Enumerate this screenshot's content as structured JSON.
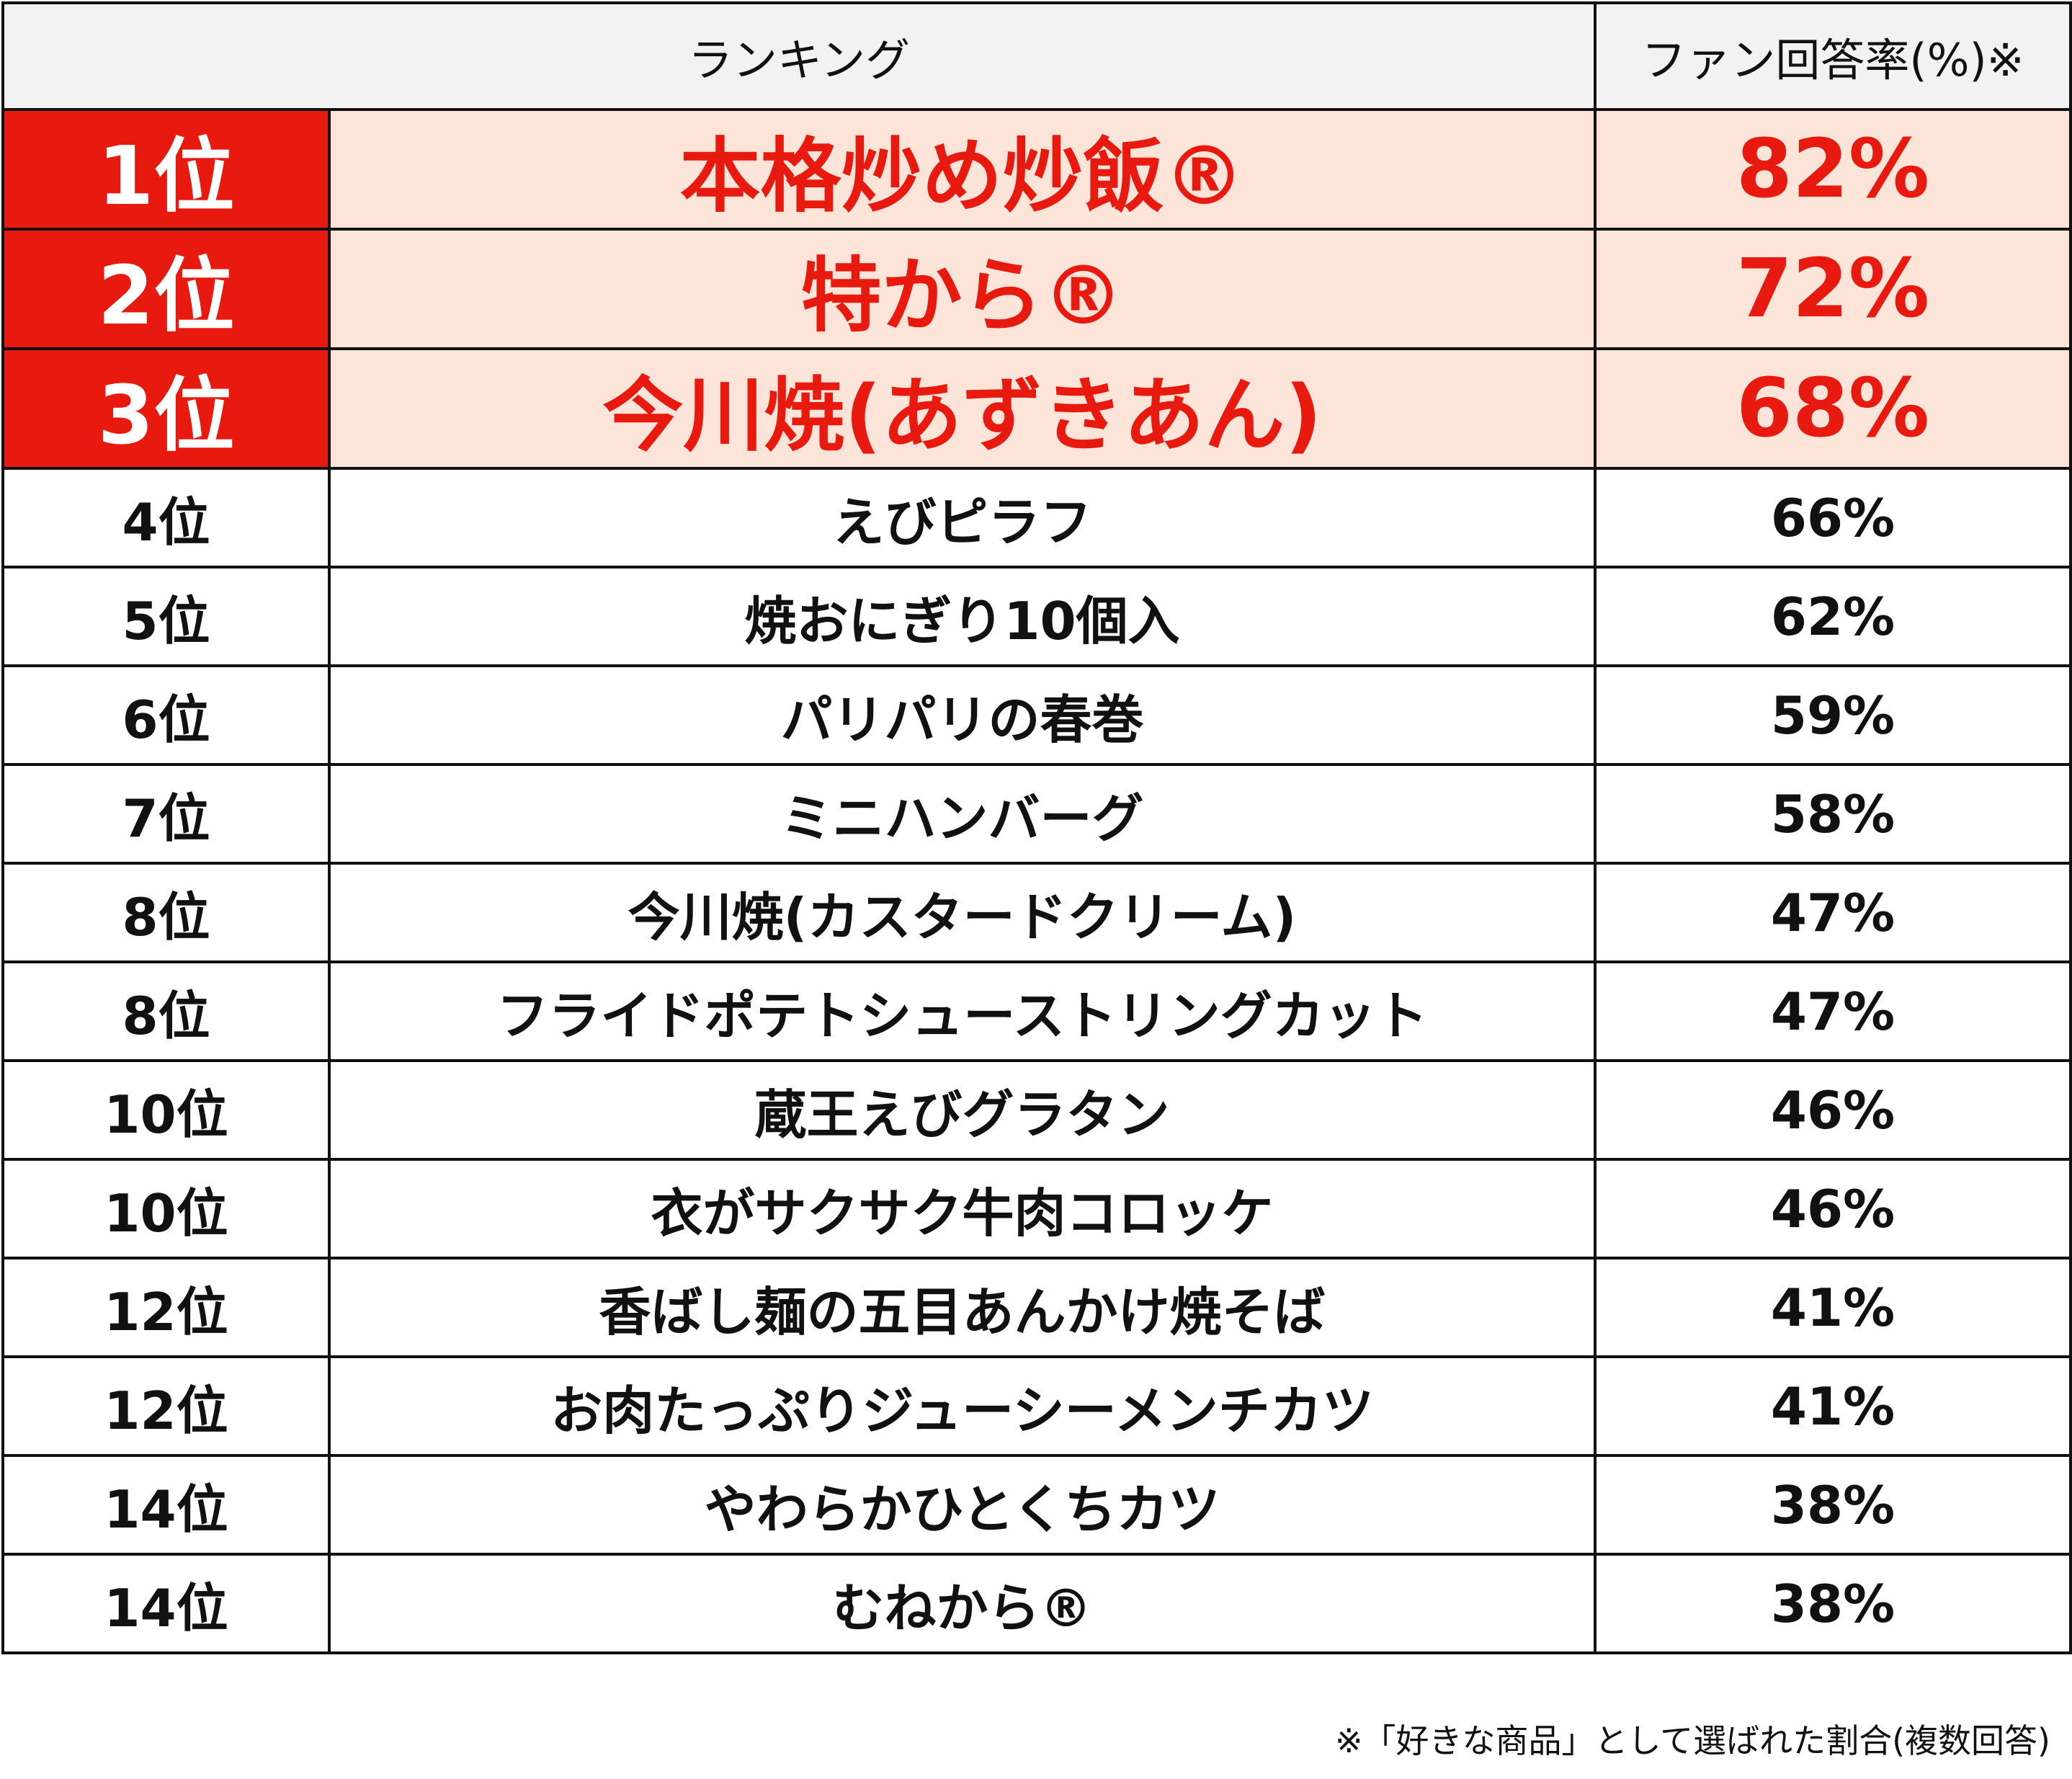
{
  "header": {
    "ranking": "ランキング",
    "rate": "ファン回答率(%)※"
  },
  "colors": {
    "accent": "#e8190f",
    "highlight_bg": "#fde4d8",
    "header_bg": "#f2f2f2"
  },
  "rows": [
    {
      "rank": "1位",
      "name": "本格炒め炒飯®",
      "rate": "82%"
    },
    {
      "rank": "2位",
      "name": "特から®",
      "rate": "72%"
    },
    {
      "rank": "3位",
      "name": "今川焼(あずきあん)",
      "rate": "68%"
    },
    {
      "rank": "4位",
      "name": "えびピラフ",
      "rate": "66%"
    },
    {
      "rank": "5位",
      "name": "焼おにぎり10個入",
      "rate": "62%"
    },
    {
      "rank": "6位",
      "name": "パリパリの春巻",
      "rate": "59%"
    },
    {
      "rank": "7位",
      "name": "ミニハンバーグ",
      "rate": "58%"
    },
    {
      "rank": "8位",
      "name": "今川焼(カスタードクリーム)",
      "rate": "47%"
    },
    {
      "rank": "8位",
      "name": "フライドポテトシューストリングカット",
      "rate": "47%"
    },
    {
      "rank": "10位",
      "name": "蔵王えびグラタン",
      "rate": "46%"
    },
    {
      "rank": "10位",
      "name": "衣がサクサク牛肉コロッケ",
      "rate": "46%"
    },
    {
      "rank": "12位",
      "name": "香ばし麺の五目あんかけ焼そば",
      "rate": "41%"
    },
    {
      "rank": "12位",
      "name": "お肉たっぷりジューシーメンチカツ",
      "rate": "41%"
    },
    {
      "rank": "14位",
      "name": "やわらかひとくちカツ",
      "rate": "38%"
    },
    {
      "rank": "14位",
      "name": "むねから®",
      "rate": "38%"
    }
  ],
  "footnote": "※「好きな商品」として選ばれた割合(複数回答)"
}
